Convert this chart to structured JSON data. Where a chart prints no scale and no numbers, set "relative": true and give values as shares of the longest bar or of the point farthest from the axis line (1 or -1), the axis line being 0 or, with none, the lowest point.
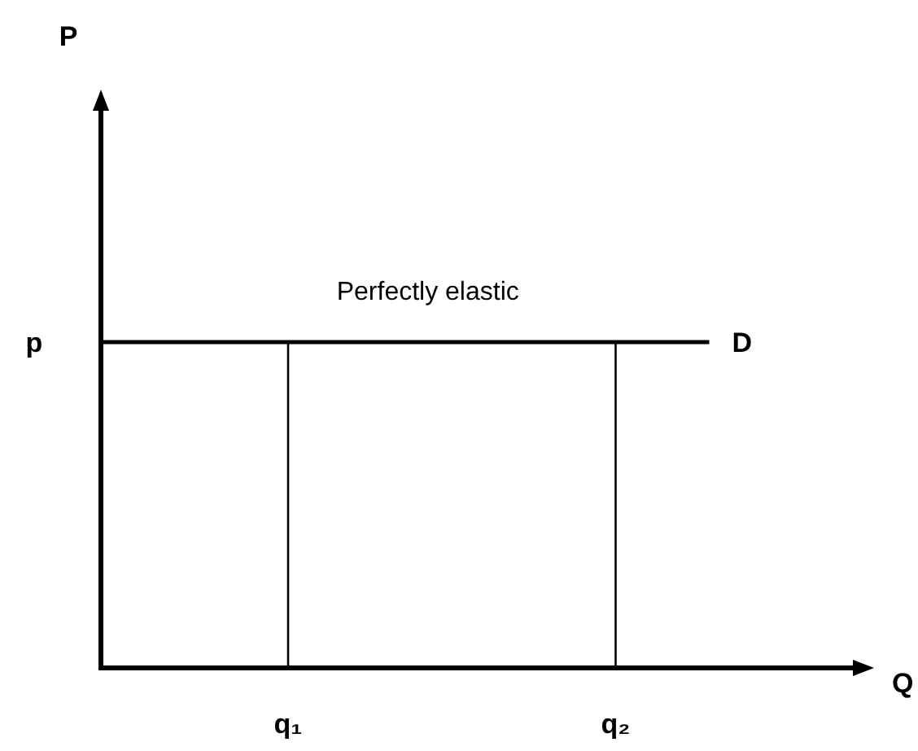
{
  "chart_data": {
    "type": "line",
    "relative": true,
    "xlabel": "Q",
    "categories": [
      null,
      null,
      null,
      null,
      "q₁",
      null,
      null,
      null,
      null,
      null,
      null,
      "q₂",
      null,
      null,
      null,
      null,
      null
    ],
    "series": [
      {
        "name": "D",
        "color": "#000000",
        "values": [
          1,
          1,
          1,
          1,
          1,
          1,
          1,
          1,
          1,
          1,
          1,
          1,
          1,
          1,
          null,
          null,
          null
        ]
      },
      {
        "color": "#000000",
        "x": [
          "q₁",
          "q₁"
        ],
        "values": [
          0,
          1
        ]
      },
      {
        "color": "#000000",
        "x": [
          "q₂",
          "q₂"
        ],
        "values": [
          0,
          1
        ]
      }
    ],
    "annotations": [
      "Perfectly elastic",
      "p",
      "P"
    ]
  }
}
